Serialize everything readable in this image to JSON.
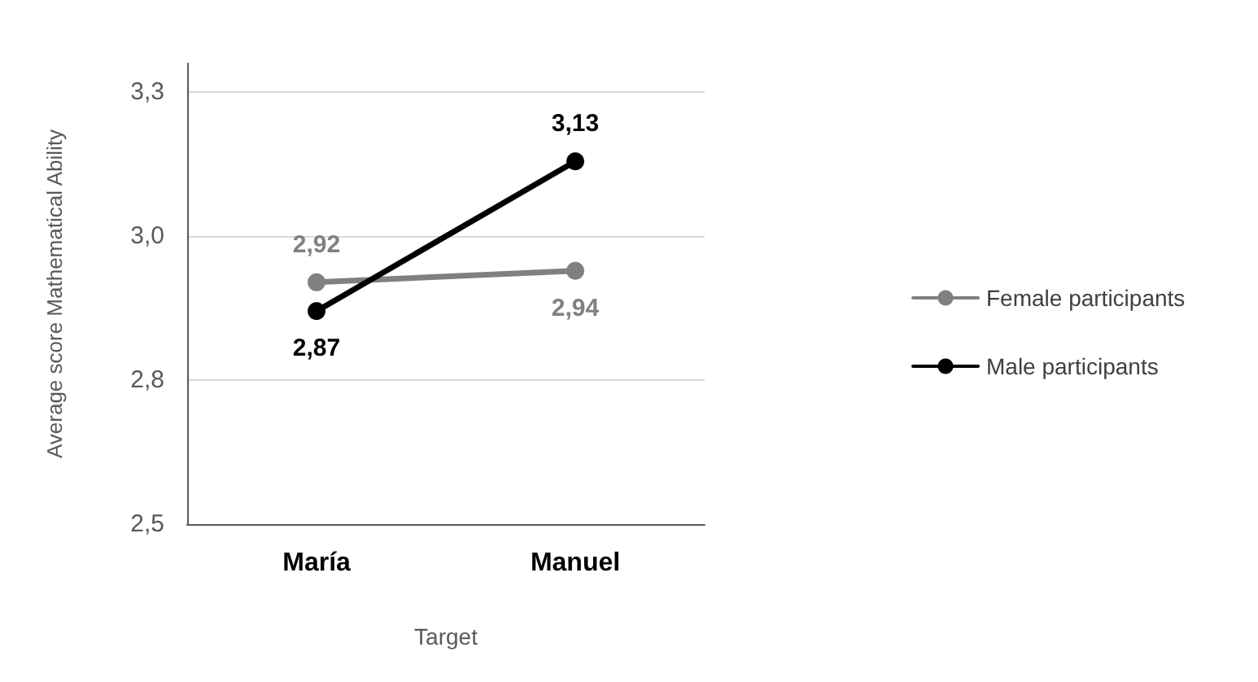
{
  "chart_data": {
    "type": "line",
    "xlabel": "Target",
    "ylabel": "Average score Mathematical Ability",
    "categories": [
      "María",
      "Manuel"
    ],
    "series": [
      {
        "name": "Female participants",
        "color": "#808080",
        "values": [
          2.92,
          2.94
        ],
        "value_labels": [
          "2,92",
          "2,94"
        ]
      },
      {
        "name": "Male participants",
        "color": "#000000",
        "values": [
          2.87,
          3.13
        ],
        "value_labels": [
          "2,87",
          "3,13"
        ]
      }
    ],
    "ylim": [
      2.5,
      3.3
    ],
    "yticks": [
      {
        "value": 2.5,
        "label": "2,5"
      },
      {
        "value": 2.75,
        "label": "2,8"
      },
      {
        "value": 3.0,
        "label": "3,0"
      },
      {
        "value": 3.25,
        "label": "3,3"
      }
    ],
    "grid": "y",
    "legend": "right",
    "marker": "circle",
    "line_style": "solid"
  }
}
